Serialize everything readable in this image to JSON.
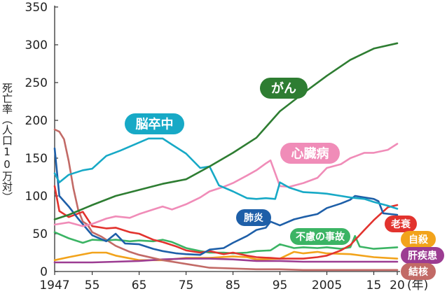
{
  "chart_data": {
    "type": "line",
    "ylabel": "死亡率（人口10万対）",
    "ylim": [
      0,
      350
    ],
    "yticks": [
      0,
      50,
      100,
      150,
      200,
      250,
      300,
      350
    ],
    "xlim": [
      1947,
      2020
    ],
    "xtick_labels": [
      {
        "x": 1947,
        "label": "1947"
      },
      {
        "x": 1955,
        "label": "55"
      },
      {
        "x": 1965,
        "label": "65"
      },
      {
        "x": 1975,
        "label": "75"
      },
      {
        "x": 1985,
        "label": "85"
      },
      {
        "x": 1995,
        "label": "95"
      },
      {
        "x": 2005,
        "label": "2005"
      },
      {
        "x": 2015,
        "label": "15"
      },
      {
        "x": 2020,
        "label": "20"
      }
    ],
    "x_unit": "(年)",
    "grid": false,
    "series": [
      {
        "name": "がん",
        "color": "#2e7d32",
        "points": [
          [
            1947,
            69
          ],
          [
            1950,
            75
          ],
          [
            1955,
            88
          ],
          [
            1960,
            100
          ],
          [
            1965,
            108
          ],
          [
            1970,
            116
          ],
          [
            1975,
            122
          ],
          [
            1980,
            139
          ],
          [
            1985,
            157
          ],
          [
            1990,
            177
          ],
          [
            1995,
            212
          ],
          [
            2000,
            236
          ],
          [
            2005,
            259
          ],
          [
            2010,
            280
          ],
          [
            2015,
            295
          ],
          [
            2020,
            302
          ]
        ]
      },
      {
        "name": "脳卒中",
        "color": "#17a9c6",
        "points": [
          [
            1947,
            130
          ],
          [
            1948,
            118
          ],
          [
            1950,
            128
          ],
          [
            1953,
            134
          ],
          [
            1955,
            136
          ],
          [
            1958,
            153
          ],
          [
            1961,
            160
          ],
          [
            1964,
            168
          ],
          [
            1967,
            176
          ],
          [
            1970,
            176
          ],
          [
            1972,
            168
          ],
          [
            1975,
            156
          ],
          [
            1978,
            137
          ],
          [
            1980,
            139
          ],
          [
            1982,
            114
          ],
          [
            1985,
            106
          ],
          [
            1988,
            97
          ],
          [
            1990,
            96
          ],
          [
            1992,
            97
          ],
          [
            1994,
            96
          ],
          [
            1995,
            118
          ],
          [
            1997,
            111
          ],
          [
            2000,
            105
          ],
          [
            2003,
            104
          ],
          [
            2005,
            103
          ],
          [
            2008,
            100
          ],
          [
            2010,
            98
          ],
          [
            2013,
            96
          ],
          [
            2015,
            92
          ],
          [
            2018,
            87
          ],
          [
            2020,
            83
          ]
        ]
      },
      {
        "name": "心臓病",
        "color": "#f08cb8",
        "points": [
          [
            1947,
            62
          ],
          [
            1950,
            65
          ],
          [
            1953,
            60
          ],
          [
            1955,
            63
          ],
          [
            1958,
            70
          ],
          [
            1960,
            73
          ],
          [
            1963,
            71
          ],
          [
            1965,
            76
          ],
          [
            1968,
            82
          ],
          [
            1970,
            86
          ],
          [
            1972,
            82
          ],
          [
            1975,
            89
          ],
          [
            1978,
            98
          ],
          [
            1980,
            106
          ],
          [
            1983,
            112
          ],
          [
            1985,
            117
          ],
          [
            1988,
            127
          ],
          [
            1990,
            134
          ],
          [
            1992,
            143
          ],
          [
            1993,
            147
          ],
          [
            1995,
            113
          ],
          [
            1997,
            112
          ],
          [
            2000,
            117
          ],
          [
            2003,
            124
          ],
          [
            2005,
            137
          ],
          [
            2008,
            142
          ],
          [
            2010,
            150
          ],
          [
            2013,
            157
          ],
          [
            2015,
            157
          ],
          [
            2018,
            161
          ],
          [
            2020,
            169
          ]
        ]
      },
      {
        "name": "肺炎",
        "color": "#1e5fa8",
        "points": [
          [
            1947,
            163
          ],
          [
            1948,
            100
          ],
          [
            1950,
            86
          ],
          [
            1952,
            70
          ],
          [
            1955,
            48
          ],
          [
            1958,
            40
          ],
          [
            1960,
            50
          ],
          [
            1962,
            37
          ],
          [
            1965,
            36
          ],
          [
            1968,
            30
          ],
          [
            1970,
            27
          ],
          [
            1973,
            24
          ],
          [
            1975,
            23
          ],
          [
            1978,
            22
          ],
          [
            1980,
            29
          ],
          [
            1983,
            31
          ],
          [
            1985,
            38
          ],
          [
            1988,
            47
          ],
          [
            1990,
            55
          ],
          [
            1992,
            58
          ],
          [
            1993,
            66
          ],
          [
            1995,
            61
          ],
          [
            1998,
            69
          ],
          [
            2000,
            72
          ],
          [
            2003,
            76
          ],
          [
            2005,
            84
          ],
          [
            2008,
            90
          ],
          [
            2010,
            95
          ],
          [
            2011,
            100
          ],
          [
            2013,
            98
          ],
          [
            2015,
            96
          ],
          [
            2016,
            93
          ],
          [
            2017,
            77
          ],
          [
            2020,
            75
          ]
        ]
      },
      {
        "name": "不慮の事故",
        "color": "#3bb464",
        "points": [
          [
            1947,
            52
          ],
          [
            1950,
            44
          ],
          [
            1953,
            38
          ],
          [
            1955,
            42
          ],
          [
            1958,
            41
          ],
          [
            1960,
            42
          ],
          [
            1963,
            40
          ],
          [
            1965,
            41
          ],
          [
            1968,
            40
          ],
          [
            1970,
            42
          ],
          [
            1972,
            39
          ],
          [
            1975,
            31
          ],
          [
            1978,
            27
          ],
          [
            1980,
            25
          ],
          [
            1983,
            25
          ],
          [
            1985,
            24
          ],
          [
            1988,
            25
          ],
          [
            1990,
            27
          ],
          [
            1993,
            28
          ],
          [
            1995,
            36
          ],
          [
            1998,
            31
          ],
          [
            2000,
            32
          ],
          [
            2003,
            31
          ],
          [
            2005,
            32
          ],
          [
            2008,
            30
          ],
          [
            2010,
            32
          ],
          [
            2011,
            47
          ],
          [
            2012,
            33
          ],
          [
            2015,
            30
          ],
          [
            2020,
            32
          ]
        ]
      },
      {
        "name": "老衰",
        "color": "#e2332e",
        "points": [
          [
            1947,
            113
          ],
          [
            1948,
            80
          ],
          [
            1950,
            72
          ],
          [
            1953,
            79
          ],
          [
            1955,
            60
          ],
          [
            1958,
            57
          ],
          [
            1960,
            58
          ],
          [
            1963,
            52
          ],
          [
            1965,
            50
          ],
          [
            1968,
            42
          ],
          [
            1970,
            39
          ],
          [
            1973,
            33
          ],
          [
            1975,
            28
          ],
          [
            1978,
            25
          ],
          [
            1980,
            27
          ],
          [
            1983,
            23
          ],
          [
            1985,
            25
          ],
          [
            1988,
            21
          ],
          [
            1990,
            19
          ],
          [
            1993,
            18
          ],
          [
            1995,
            17
          ],
          [
            1998,
            17
          ],
          [
            2000,
            17
          ],
          [
            2003,
            19
          ],
          [
            2005,
            21
          ],
          [
            2008,
            28
          ],
          [
            2010,
            35
          ],
          [
            2013,
            55
          ],
          [
            2015,
            68
          ],
          [
            2018,
            85
          ],
          [
            2020,
            88
          ]
        ]
      },
      {
        "name": "自殺",
        "color": "#f2a31b",
        "points": [
          [
            1947,
            15
          ],
          [
            1950,
            19
          ],
          [
            1955,
            25
          ],
          [
            1958,
            25
          ],
          [
            1960,
            21
          ],
          [
            1965,
            15
          ],
          [
            1970,
            15
          ],
          [
            1975,
            18
          ],
          [
            1980,
            18
          ],
          [
            1985,
            20
          ],
          [
            1988,
            19
          ],
          [
            1990,
            16
          ],
          [
            1995,
            17
          ],
          [
            1998,
            26
          ],
          [
            2000,
            24
          ],
          [
            2003,
            26
          ],
          [
            2005,
            24
          ],
          [
            2010,
            23
          ],
          [
            2015,
            19
          ],
          [
            2020,
            17
          ]
        ]
      },
      {
        "name": "肝疾患",
        "color": "#9c3c92",
        "points": [
          [
            1947,
            12
          ],
          [
            1955,
            12
          ],
          [
            1960,
            13
          ],
          [
            1965,
            14
          ],
          [
            1970,
            16
          ],
          [
            1975,
            17
          ],
          [
            1980,
            17
          ],
          [
            1985,
            16
          ],
          [
            1990,
            14
          ],
          [
            1995,
            14
          ],
          [
            2000,
            13
          ],
          [
            2005,
            13
          ],
          [
            2010,
            13
          ],
          [
            2015,
            13
          ],
          [
            2020,
            13
          ]
        ]
      },
      {
        "name": "結核",
        "color": "#c26a66",
        "points": [
          [
            1947,
            188
          ],
          [
            1948,
            185
          ],
          [
            1949,
            175
          ],
          [
            1950,
            146
          ],
          [
            1951,
            110
          ],
          [
            1952,
            82
          ],
          [
            1953,
            66
          ],
          [
            1954,
            62
          ],
          [
            1955,
            52
          ],
          [
            1957,
            46
          ],
          [
            1960,
            34
          ],
          [
            1963,
            26
          ],
          [
            1965,
            22
          ],
          [
            1970,
            15
          ],
          [
            1975,
            10
          ],
          [
            1980,
            5
          ],
          [
            1985,
            4
          ],
          [
            1990,
            3
          ],
          [
            1995,
            3
          ],
          [
            2000,
            2
          ],
          [
            2010,
            2
          ],
          [
            2020,
            2
          ]
        ]
      }
    ]
  }
}
